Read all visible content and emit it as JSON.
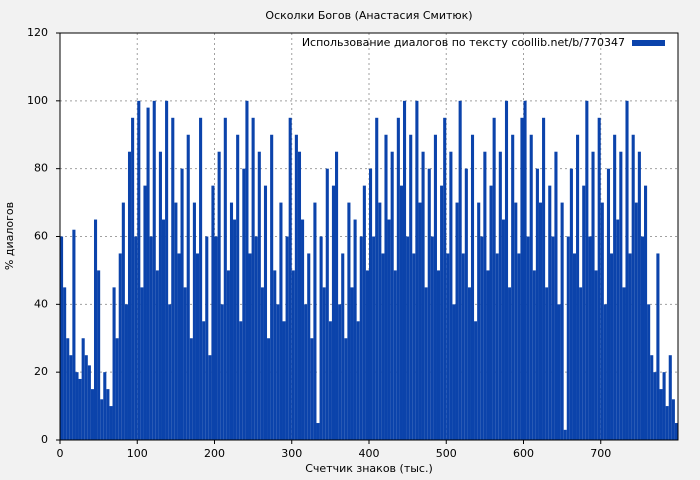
{
  "chart_data": {
    "type": "bar",
    "title": "Осколки Богов (Анастасия Смитюк)",
    "x_label": "Счетчик знаков (тыс.)",
    "y_label": "% диалогов",
    "legend": "top-right",
    "grid": true,
    "xlim": [
      0,
      800
    ],
    "ylim": [
      0,
      120
    ],
    "xticks": [
      0,
      100,
      200,
      300,
      400,
      500,
      600,
      700
    ],
    "yticks": [
      0,
      20,
      40,
      60,
      80,
      100,
      120
    ],
    "bar_width": 4,
    "series": [
      {
        "name": "Использование диалогов по тексту coollib.net/b/770347",
        "color": "#0b43ab",
        "x": [
          0,
          4,
          8,
          12,
          16,
          20,
          24,
          28,
          32,
          36,
          40,
          44,
          48,
          52,
          56,
          60,
          64,
          68,
          72,
          76,
          80,
          84,
          88,
          92,
          96,
          100,
          104,
          108,
          112,
          116,
          120,
          124,
          128,
          132,
          136,
          140,
          144,
          148,
          152,
          156,
          160,
          164,
          168,
          172,
          176,
          180,
          184,
          188,
          192,
          196,
          200,
          204,
          208,
          212,
          216,
          220,
          224,
          228,
          232,
          236,
          240,
          244,
          248,
          252,
          256,
          260,
          264,
          268,
          272,
          276,
          280,
          284,
          288,
          292,
          296,
          300,
          304,
          308,
          312,
          316,
          320,
          324,
          328,
          332,
          336,
          340,
          344,
          348,
          352,
          356,
          360,
          364,
          368,
          372,
          376,
          380,
          384,
          388,
          392,
          396,
          400,
          404,
          408,
          412,
          416,
          420,
          424,
          428,
          432,
          436,
          440,
          444,
          448,
          452,
          456,
          460,
          464,
          468,
          472,
          476,
          480,
          484,
          488,
          492,
          496,
          500,
          504,
          508,
          512,
          516,
          520,
          524,
          528,
          532,
          536,
          540,
          544,
          548,
          552,
          556,
          560,
          564,
          568,
          572,
          576,
          580,
          584,
          588,
          592,
          596,
          600,
          604,
          608,
          612,
          616,
          620,
          624,
          628,
          632,
          636,
          640,
          644,
          648,
          652,
          656,
          660,
          664,
          668,
          672,
          676,
          680,
          684,
          688,
          692,
          696,
          700,
          704,
          708,
          712,
          716,
          720,
          724,
          728,
          732,
          736,
          740,
          744,
          748,
          752,
          756,
          760,
          764,
          768,
          772,
          776,
          780,
          784,
          788,
          792,
          796
        ],
        "values": [
          60,
          45,
          30,
          25,
          62,
          20,
          18,
          30,
          25,
          22,
          15,
          65,
          50,
          12,
          20,
          15,
          10,
          45,
          30,
          55,
          70,
          40,
          85,
          95,
          60,
          100,
          45,
          75,
          98,
          60,
          100,
          50,
          85,
          65,
          100,
          40,
          95,
          70,
          55,
          80,
          45,
          90,
          30,
          70,
          55,
          95,
          35,
          60,
          25,
          75,
          60,
          85,
          40,
          95,
          50,
          70,
          65,
          90,
          35,
          80,
          100,
          55,
          95,
          60,
          85,
          45,
          75,
          30,
          90,
          50,
          40,
          70,
          35,
          60,
          95,
          50,
          90,
          85,
          65,
          40,
          55,
          30,
          70,
          5,
          60,
          45,
          80,
          35,
          75,
          85,
          40,
          55,
          30,
          70,
          45,
          65,
          35,
          60,
          75,
          50,
          80,
          60,
          95,
          70,
          55,
          90,
          65,
          85,
          50,
          95,
          75,
          100,
          60,
          90,
          55,
          100,
          70,
          85,
          45,
          80,
          60,
          90,
          50,
          75,
          95,
          55,
          85,
          40,
          70,
          100,
          55,
          80,
          45,
          90,
          35,
          70,
          60,
          85,
          50,
          75,
          95,
          55,
          85,
          65,
          100,
          45,
          90,
          70,
          55,
          95,
          100,
          60,
          90,
          50,
          80,
          70,
          95,
          45,
          75,
          60,
          85,
          40,
          70,
          3,
          60,
          80,
          55,
          90,
          45,
          75,
          100,
          60,
          85,
          50,
          95,
          70,
          40,
          80,
          55,
          90,
          65,
          85,
          45,
          100,
          55,
          90,
          70,
          85,
          60,
          75,
          40,
          25,
          20,
          55,
          15,
          20,
          10,
          25,
          12,
          5
        ]
      }
    ]
  }
}
